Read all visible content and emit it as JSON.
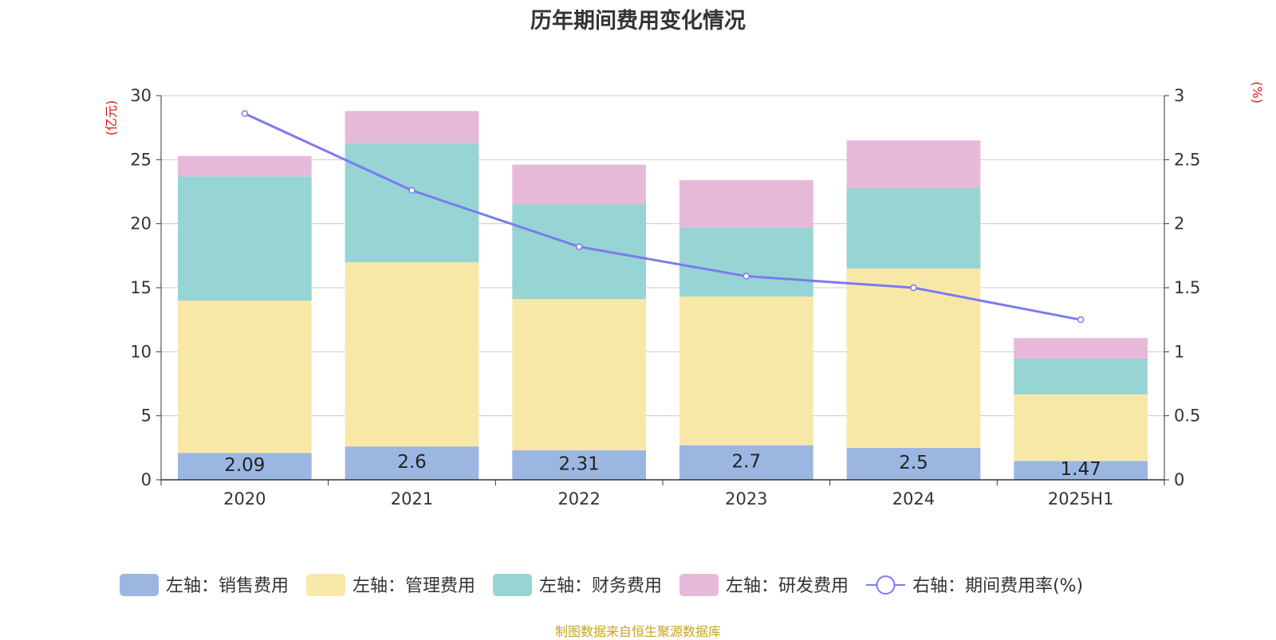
{
  "title": "历年期间费用变化情况",
  "source_note": "制图数据来自恒生聚源数据库",
  "colors": {
    "sales": "#9bb7e1",
    "admin": "#f8e8a8",
    "finance": "#97d4d4",
    "rnd": "#e7b9d9",
    "rate": "#7b7bef",
    "axis_unit": "#e01515",
    "grid": "#cccccc",
    "text": "#333333"
  },
  "chart_data": {
    "type": "bar",
    "stacked": true,
    "categories": [
      "2020",
      "2021",
      "2022",
      "2023",
      "2024",
      "2025H1"
    ],
    "left_axis": {
      "unit": "(亿元)",
      "ylim": [
        0,
        30
      ],
      "ticks": [
        0,
        5,
        10,
        15,
        20,
        25,
        30
      ]
    },
    "right_axis": {
      "unit": "(%)",
      "ylim": [
        0,
        3
      ],
      "ticks": [
        "0",
        "0.5",
        "1",
        "1.5",
        "2",
        "2.5",
        "3"
      ]
    },
    "grid": true,
    "legend_position": "bottom",
    "series": [
      {
        "name": "左轴：销售费用",
        "key": "sales",
        "axis": "left",
        "type": "bar",
        "values": [
          2.09,
          2.6,
          2.31,
          2.7,
          2.5,
          1.47
        ],
        "labels": [
          "2.09",
          "2.6",
          "2.31",
          "2.7",
          "2.5",
          "1.47"
        ]
      },
      {
        "name": "左轴：管理费用",
        "key": "admin",
        "axis": "left",
        "type": "bar",
        "values": [
          11.9,
          14.4,
          11.8,
          11.6,
          14.0,
          5.2
        ]
      },
      {
        "name": "左轴：财务费用",
        "key": "finance",
        "axis": "left",
        "type": "bar",
        "values": [
          9.7,
          9.3,
          7.4,
          5.4,
          6.3,
          2.8
        ]
      },
      {
        "name": "左轴：研发费用",
        "key": "rnd",
        "axis": "left",
        "type": "bar",
        "values": [
          1.6,
          2.5,
          3.1,
          3.7,
          3.7,
          1.6
        ]
      },
      {
        "name": "右轴：期间费用率(%)",
        "key": "rate",
        "axis": "right",
        "type": "line",
        "values": [
          2.86,
          2.26,
          1.82,
          1.59,
          1.5,
          1.25
        ]
      }
    ]
  }
}
